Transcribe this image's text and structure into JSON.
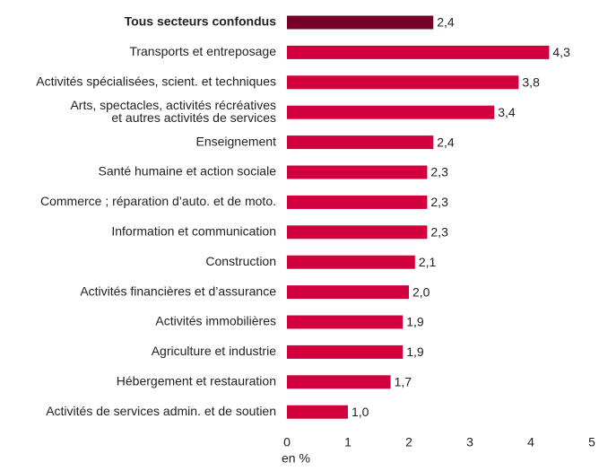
{
  "chart_data": {
    "type": "barh",
    "categories": [
      "Tous secteurs confondus",
      "Transports et entreposage",
      "Activités spécialisées, scient. et techniques",
      "Arts, spectacles, activités récréatives\net autres activités de services",
      "Enseignement",
      "Santé humaine et action sociale",
      "Commerce ; réparation d’auto. et de moto.",
      "Information et communication",
      "Construction",
      "Activités financières et d’assurance",
      "Activités immobilières",
      "Agriculture et industrie",
      "Hébergement et restauration",
      "Activités de services admin. et de soutien"
    ],
    "values": [
      2.4,
      4.3,
      3.8,
      3.4,
      2.4,
      2.3,
      2.3,
      2.3,
      2.1,
      2.0,
      1.9,
      1.9,
      1.7,
      1.0
    ],
    "value_labels": [
      "2,4",
      "4,3",
      "3,8",
      "3,4",
      "2,4",
      "2,3",
      "2,3",
      "2,3",
      "2,1",
      "2,0",
      "1,9",
      "1,9",
      "1,7",
      "1,0"
    ],
    "color": "#d2003c",
    "highlight": 0,
    "highlight_color": "#75002a",
    "xlabel": "en %",
    "xlim": [
      0,
      5
    ],
    "xticks": [
      0,
      1,
      2,
      3,
      4,
      5
    ],
    "grid": false
  }
}
